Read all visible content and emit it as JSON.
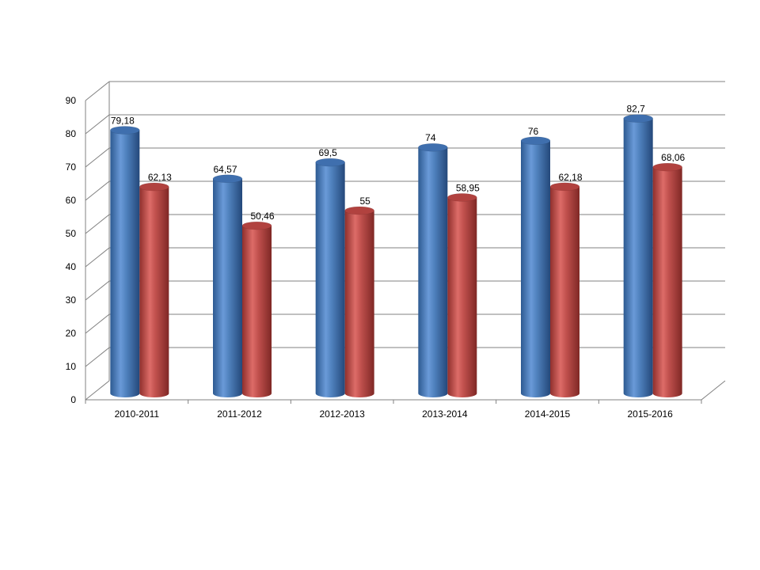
{
  "chart_data": {
    "type": "bar",
    "style": "3d-cylinder",
    "categories": [
      "2010-2011",
      "2011-2012",
      "2012-2013",
      "2013-2014",
      "2014-2015",
      "2015-2016"
    ],
    "series": [
      {
        "values": [
          79.18,
          64.57,
          69.5,
          74,
          76,
          82.7
        ],
        "labels": [
          "79,18",
          "64,57",
          "69,5",
          "74",
          "76",
          "82,7"
        ],
        "color": "#4F81BD"
      },
      {
        "values": [
          62.13,
          50.46,
          55,
          58.95,
          62.18,
          68.06
        ],
        "labels": [
          "62,13",
          "50,46",
          "55",
          "58,95",
          "62,18",
          "68,06"
        ],
        "color": "#C0504D"
      }
    ],
    "yticks": [
      "0",
      "10",
      "20",
      "30",
      "40",
      "50",
      "60",
      "70",
      "80",
      "90"
    ],
    "ylim": [
      0,
      90
    ],
    "grid": true,
    "legend": "none",
    "title": "",
    "xlabel": "",
    "ylabel": ""
  }
}
